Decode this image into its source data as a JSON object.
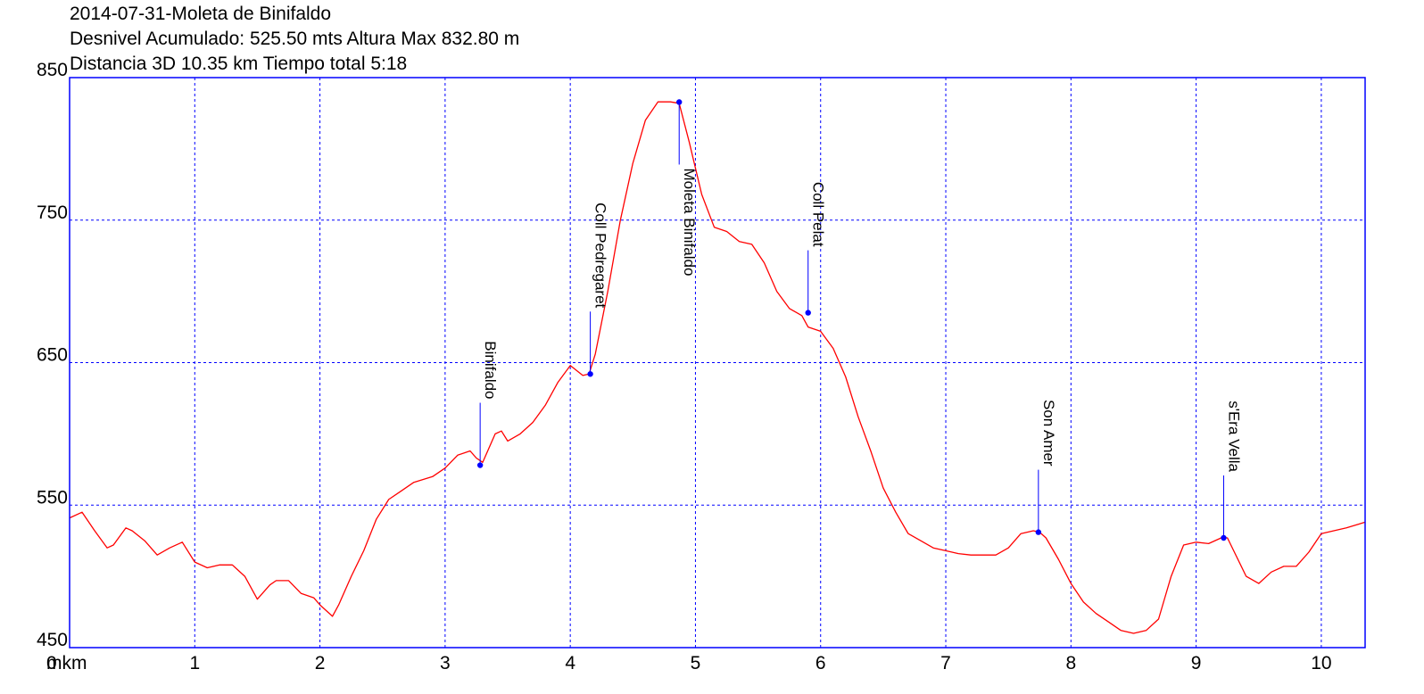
{
  "title_lines": [
    "2014-07-31-Moleta de Binifaldo",
    "Desnivel Acumulado: 525.50 mts  Altura Max 832.80 m",
    "Distancia 3D 10.35 km  Tiempo total 5:18"
  ],
  "colors": {
    "profile": "#ff0000",
    "grid": "#0000ff",
    "frame": "#0000ff",
    "marker": "#0000ff"
  },
  "chart_data": {
    "type": "line",
    "title": "2014-07-31-Moleta de Binifaldo",
    "xlabel": "km",
    "ylabel": "m",
    "xlim": [
      0,
      10.35
    ],
    "ylim": [
      450,
      850
    ],
    "x_ticks": [
      0,
      1,
      2,
      3,
      4,
      5,
      6,
      7,
      8,
      9,
      10
    ],
    "x_tick_labels": [
      "0 km",
      "1",
      "2",
      "3",
      "4",
      "5",
      "6",
      "7",
      "8",
      "9",
      "10"
    ],
    "y_ticks": [
      450,
      550,
      650,
      750,
      850
    ],
    "y_tick_labels": [
      "450",
      "550",
      "650",
      "750",
      "850"
    ],
    "y_axis_unit_label": "m",
    "grid": true,
    "series": [
      {
        "name": "",
        "x": [
          0,
          0.1,
          0.2,
          0.3,
          0.35,
          0.45,
          0.5,
          0.6,
          0.7,
          0.8,
          0.9,
          1.0,
          1.1,
          1.2,
          1.3,
          1.4,
          1.5,
          1.6,
          1.65,
          1.75,
          1.85,
          1.95,
          2.0,
          2.1,
          2.15,
          2.25,
          2.35,
          2.45,
          2.55,
          2.65,
          2.75,
          2.9,
          3.0,
          3.1,
          3.2,
          3.25,
          3.3,
          3.4,
          3.45,
          3.5,
          3.6,
          3.7,
          3.8,
          3.9,
          4.0,
          4.1,
          4.15,
          4.2,
          4.3,
          4.4,
          4.5,
          4.6,
          4.7,
          4.8,
          4.87,
          4.95,
          5.05,
          5.15,
          5.25,
          5.35,
          5.45,
          5.55,
          5.65,
          5.75,
          5.85,
          5.9,
          6.0,
          6.1,
          6.2,
          6.3,
          6.4,
          6.5,
          6.6,
          6.7,
          6.8,
          6.9,
          7.0,
          7.1,
          7.2,
          7.3,
          7.4,
          7.5,
          7.6,
          7.7,
          7.75,
          7.8,
          7.9,
          8.0,
          8.1,
          8.2,
          8.3,
          8.4,
          8.5,
          8.6,
          8.7,
          8.8,
          8.9,
          9.0,
          9.1,
          9.2,
          9.25,
          9.3,
          9.4,
          9.5,
          9.6,
          9.7,
          9.8,
          9.9,
          10.0,
          10.1,
          10.2,
          10.35
        ],
        "y": [
          541,
          545,
          532,
          520,
          522,
          534,
          532,
          525,
          515,
          520,
          524,
          510,
          506,
          508,
          508,
          500,
          484,
          494,
          497,
          497,
          488,
          485,
          480,
          472,
          480,
          500,
          518,
          540,
          554,
          560,
          566,
          570,
          576,
          585,
          588,
          583,
          580,
          600,
          602,
          595,
          600,
          608,
          620,
          636,
          648,
          641,
          642,
          656,
          700,
          750,
          790,
          820,
          833,
          833,
          832,
          805,
          768,
          745,
          742,
          735,
          733,
          720,
          700,
          688,
          683,
          675,
          672,
          660,
          640,
          612,
          588,
          562,
          545,
          530,
          525,
          520,
          518,
          516,
          515,
          515,
          515,
          520,
          530,
          532,
          531,
          527,
          512,
          495,
          482,
          474,
          468,
          462,
          460,
          462,
          470,
          500,
          522,
          524,
          523,
          527,
          527,
          518,
          500,
          495,
          503,
          507,
          507,
          517,
          530,
          532,
          534,
          538
        ]
      }
    ],
    "waypoints": [
      {
        "name": "Binifaldo",
        "x": 3.28,
        "y": 578
      },
      {
        "name": "Coll Pedregaret",
        "x": 4.16,
        "y": 642
      },
      {
        "name": "Moleta Binifaldo",
        "x": 4.87,
        "y": 832.8
      },
      {
        "name": "Coll Pelat",
        "x": 5.9,
        "y": 685
      },
      {
        "name": "Son Amer",
        "x": 7.74,
        "y": 531
      },
      {
        "name": "s'Era Vella",
        "x": 9.22,
        "y": 527
      }
    ]
  }
}
